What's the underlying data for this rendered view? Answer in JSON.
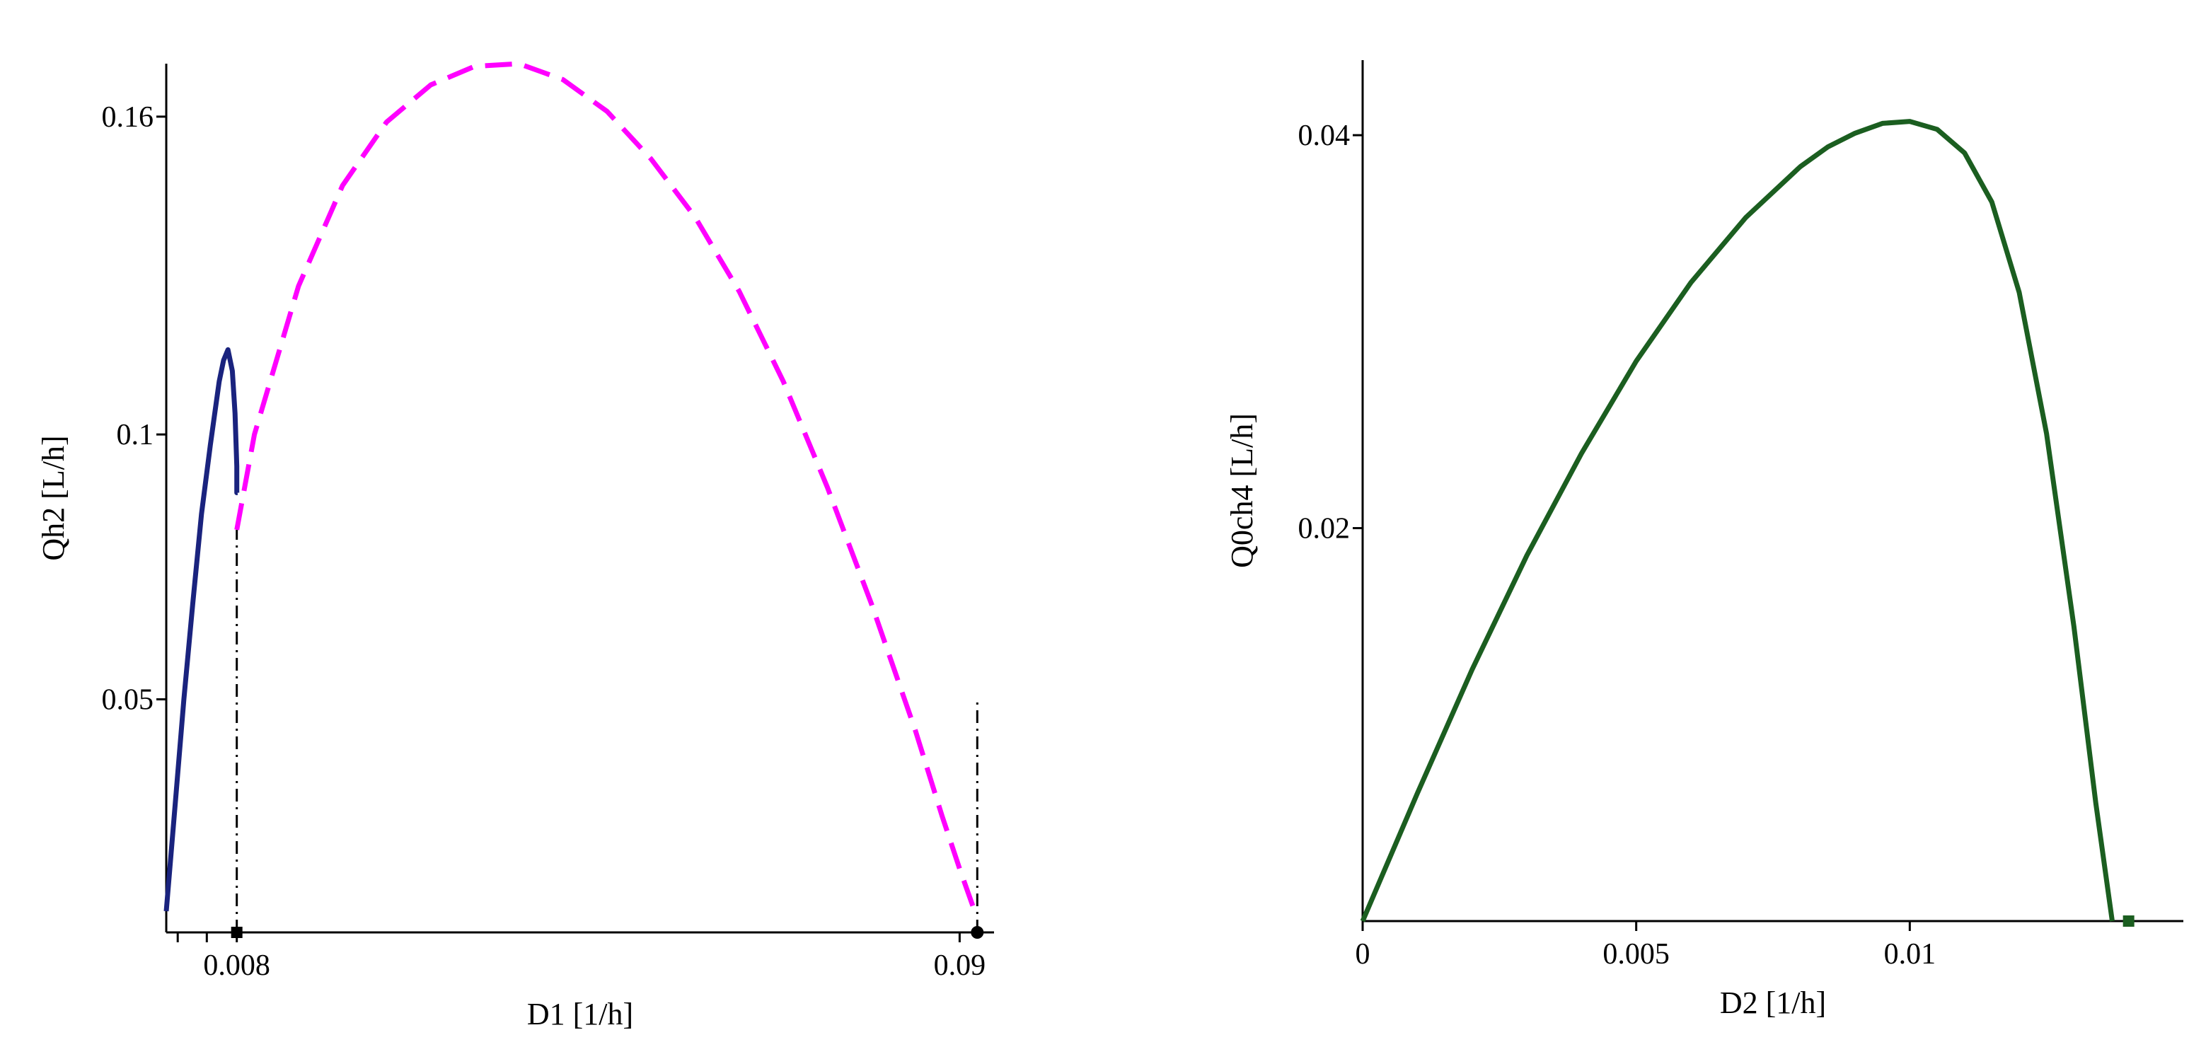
{
  "chart_data": [
    {
      "type": "line",
      "xlabel": "D1 [1/h]",
      "ylabel": "Qh2 [L/h]",
      "xlim": [
        0.0,
        0.0935
      ],
      "ylim": [
        0.006,
        0.17
      ],
      "xticks": [
        {
          "value": 0.0013,
          "label": ""
        },
        {
          "value": 0.0046,
          "label": ""
        },
        {
          "value": 0.008,
          "label": "0.008"
        },
        {
          "value": 0.09,
          "label": "0.09"
        }
      ],
      "yticks": [
        {
          "value": 0.05,
          "label": "0.05"
        },
        {
          "value": 0.1,
          "label": "0.1"
        },
        {
          "value": 0.16,
          "label": "0.16"
        }
      ],
      "series": [
        {
          "style": "solid",
          "color": "#1a237e",
          "x": [
            0.0,
            0.001,
            0.002,
            0.003,
            0.004,
            0.005,
            0.006,
            0.0065,
            0.007,
            0.0075,
            0.0078,
            0.008,
            0.008,
            0.0081
          ],
          "y": [
            0.01,
            0.03,
            0.05,
            0.068,
            0.085,
            0.098,
            0.11,
            0.114,
            0.116,
            0.112,
            0.104,
            0.094,
            0.089,
            0.089
          ]
        },
        {
          "style": "dashed",
          "color": "#ff00ff",
          "x": [
            0.008,
            0.01,
            0.015,
            0.02,
            0.025,
            0.03,
            0.035,
            0.04,
            0.045,
            0.05,
            0.055,
            0.06,
            0.065,
            0.07,
            0.075,
            0.08,
            0.085,
            0.088,
            0.09,
            0.0917
          ],
          "y": [
            0.082,
            0.1,
            0.128,
            0.147,
            0.159,
            0.166,
            0.1695,
            0.17,
            0.167,
            0.161,
            0.152,
            0.141,
            0.127,
            0.11,
            0.09,
            0.068,
            0.044,
            0.028,
            0.018,
            0.01
          ]
        }
      ],
      "vlines": [
        {
          "x": 0.008,
          "y_from": 0.006,
          "y_to": 0.082,
          "style": "dashdot"
        },
        {
          "x": 0.092,
          "y_from": 0.006,
          "y_to": 0.05,
          "style": "dashdot"
        }
      ],
      "markers": [
        {
          "x": 0.008,
          "y": 0.006,
          "shape": "square",
          "color": "#000000"
        },
        {
          "x": 0.092,
          "y": 0.006,
          "shape": "circle",
          "color": "#000000"
        }
      ]
    },
    {
      "type": "line",
      "xlabel": "D2 [1/h]",
      "ylabel": "Q0ch4 [L/h]",
      "xlim": [
        0.0,
        0.015
      ],
      "ylim": [
        0.0,
        0.044
      ],
      "xticks": [
        {
          "value": 0,
          "label": "0"
        },
        {
          "value": 0.005,
          "label": "0.005"
        },
        {
          "value": 0.01,
          "label": "0.01"
        }
      ],
      "yticks": [
        {
          "value": 0.02,
          "label": "0.02"
        },
        {
          "value": 0.04,
          "label": "0.04"
        }
      ],
      "series": [
        {
          "style": "solid",
          "color": "#1b5e20",
          "x": [
            0.0,
            0.001,
            0.002,
            0.003,
            0.004,
            0.005,
            0.006,
            0.007,
            0.008,
            0.0085,
            0.009,
            0.0095,
            0.01,
            0.0105,
            0.011,
            0.0115,
            0.012,
            0.0125,
            0.013,
            0.0134,
            0.0137
          ],
          "y": [
            0.0,
            0.0065,
            0.0128,
            0.0186,
            0.0238,
            0.0285,
            0.0325,
            0.0358,
            0.0384,
            0.0394,
            0.0401,
            0.0406,
            0.0407,
            0.0403,
            0.0391,
            0.0366,
            0.032,
            0.0248,
            0.015,
            0.006,
            0.0
          ]
        }
      ],
      "markers": [
        {
          "x": 0.014,
          "y": 0.0,
          "shape": "square",
          "color": "#1b5e20"
        }
      ]
    }
  ]
}
